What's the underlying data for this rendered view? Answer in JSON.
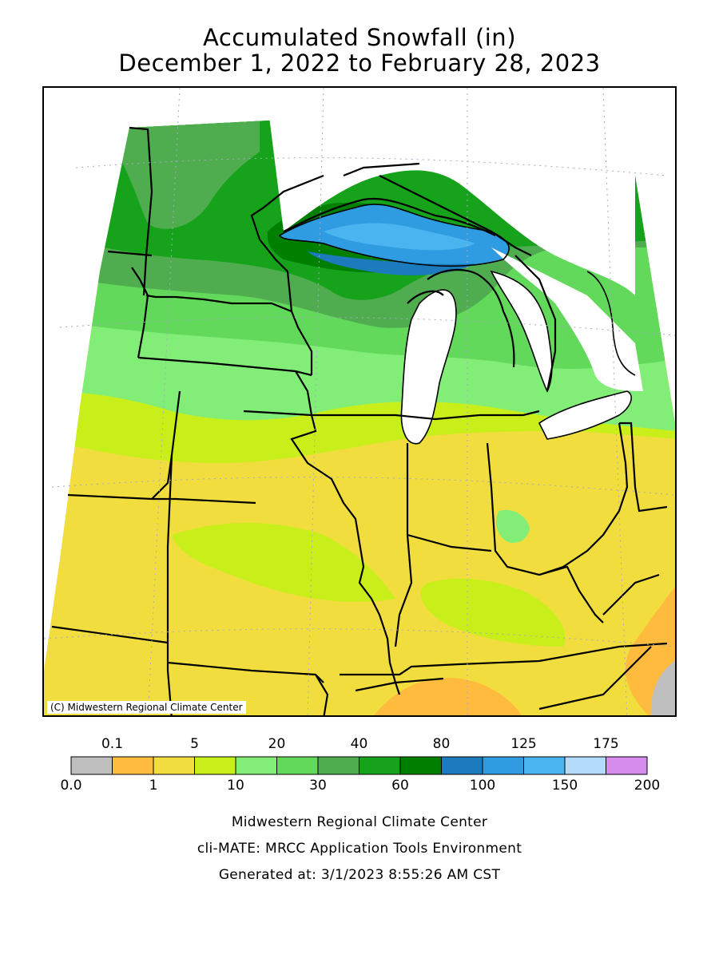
{
  "title": {
    "line1": "Accumulated Snowfall (in)",
    "line2": "December 1, 2022 to February 28, 2023"
  },
  "map": {
    "copyright": "(C) Midwestern Regional Climate Center"
  },
  "legend": {
    "top_labels": [
      "0.1",
      "5",
      "20",
      "40",
      "80",
      "125",
      "175"
    ],
    "bottom_labels": [
      "0.0",
      "1",
      "10",
      "30",
      "60",
      "100",
      "150",
      "200"
    ],
    "colors": [
      "#bfbfbf",
      "#ffbb3d",
      "#f2dd3e",
      "#c8ef1a",
      "#82ee78",
      "#62d95b",
      "#4fad4f",
      "#17a21c",
      "#007f00",
      "#1b7bbd",
      "#2f9be0",
      "#4ab4f0",
      "#b4dcfa",
      "#d58ced"
    ]
  },
  "footer": {
    "line1": "Midwestern Regional Climate Center",
    "line2": "cli-MATE: MRCC Application Tools Environment",
    "line3": "Generated at: 3/1/2023 8:55:26 AM CST"
  }
}
